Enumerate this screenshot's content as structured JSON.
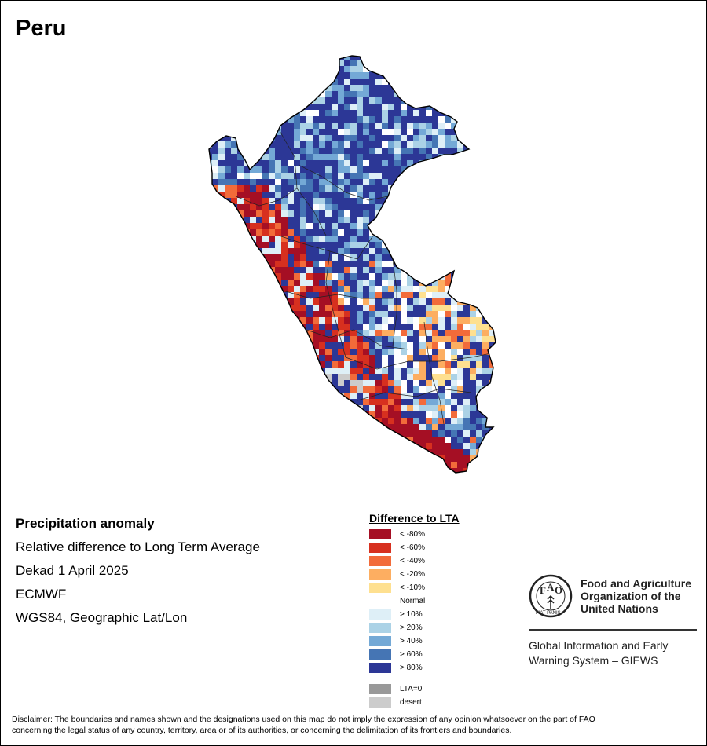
{
  "title": "Peru",
  "info": {
    "heading": "Precipitation anomaly",
    "line1": "Relative difference to Long Term Average",
    "line2": "Dekad 1 April 2025",
    "line3": "ECMWF",
    "line4": "WGS84, Geographic Lat/Lon"
  },
  "legend": {
    "title": "Difference to LTA",
    "items": [
      {
        "label": "< -80%",
        "color": "#a50f24"
      },
      {
        "label": "< -60%",
        "color": "#d7301f"
      },
      {
        "label": "< -40%",
        "color": "#f26b3a"
      },
      {
        "label": "< -20%",
        "color": "#fdae61"
      },
      {
        "label": "< -10%",
        "color": "#fee090"
      },
      {
        "label": "Normal",
        "color": "#ffffff"
      },
      {
        "label": "> 10%",
        "color": "#deeff7"
      },
      {
        "label": "> 20%",
        "color": "#abd2e6"
      },
      {
        "label": "> 40%",
        "color": "#74a9d6"
      },
      {
        "label": "> 60%",
        "color": "#4575b4"
      },
      {
        "label": "> 80%",
        "color": "#2c3796"
      },
      {
        "label": "LTA=0",
        "color": "#999999"
      },
      {
        "label": "desert",
        "color": "#cccccc"
      }
    ]
  },
  "fao": {
    "name_line1": "Food and Agriculture",
    "name_line2": "Organization of the",
    "name_line3": "United Nations",
    "logo_text": "FIAT PANIS",
    "sub_line1": "Global Information and Early",
    "sub_line2": "Warning System – GIEWS"
  },
  "disclaimer_line1": "Disclaimer: The boundaries and names shown and the designations used on this map do not imply the expression of any opinion whatsoever on the part of FAO",
  "disclaimer_line2": "concerning the legal status of any country, territory, area or of its authorities, or concerning the delimitation of its frontiers and boundaries."
}
